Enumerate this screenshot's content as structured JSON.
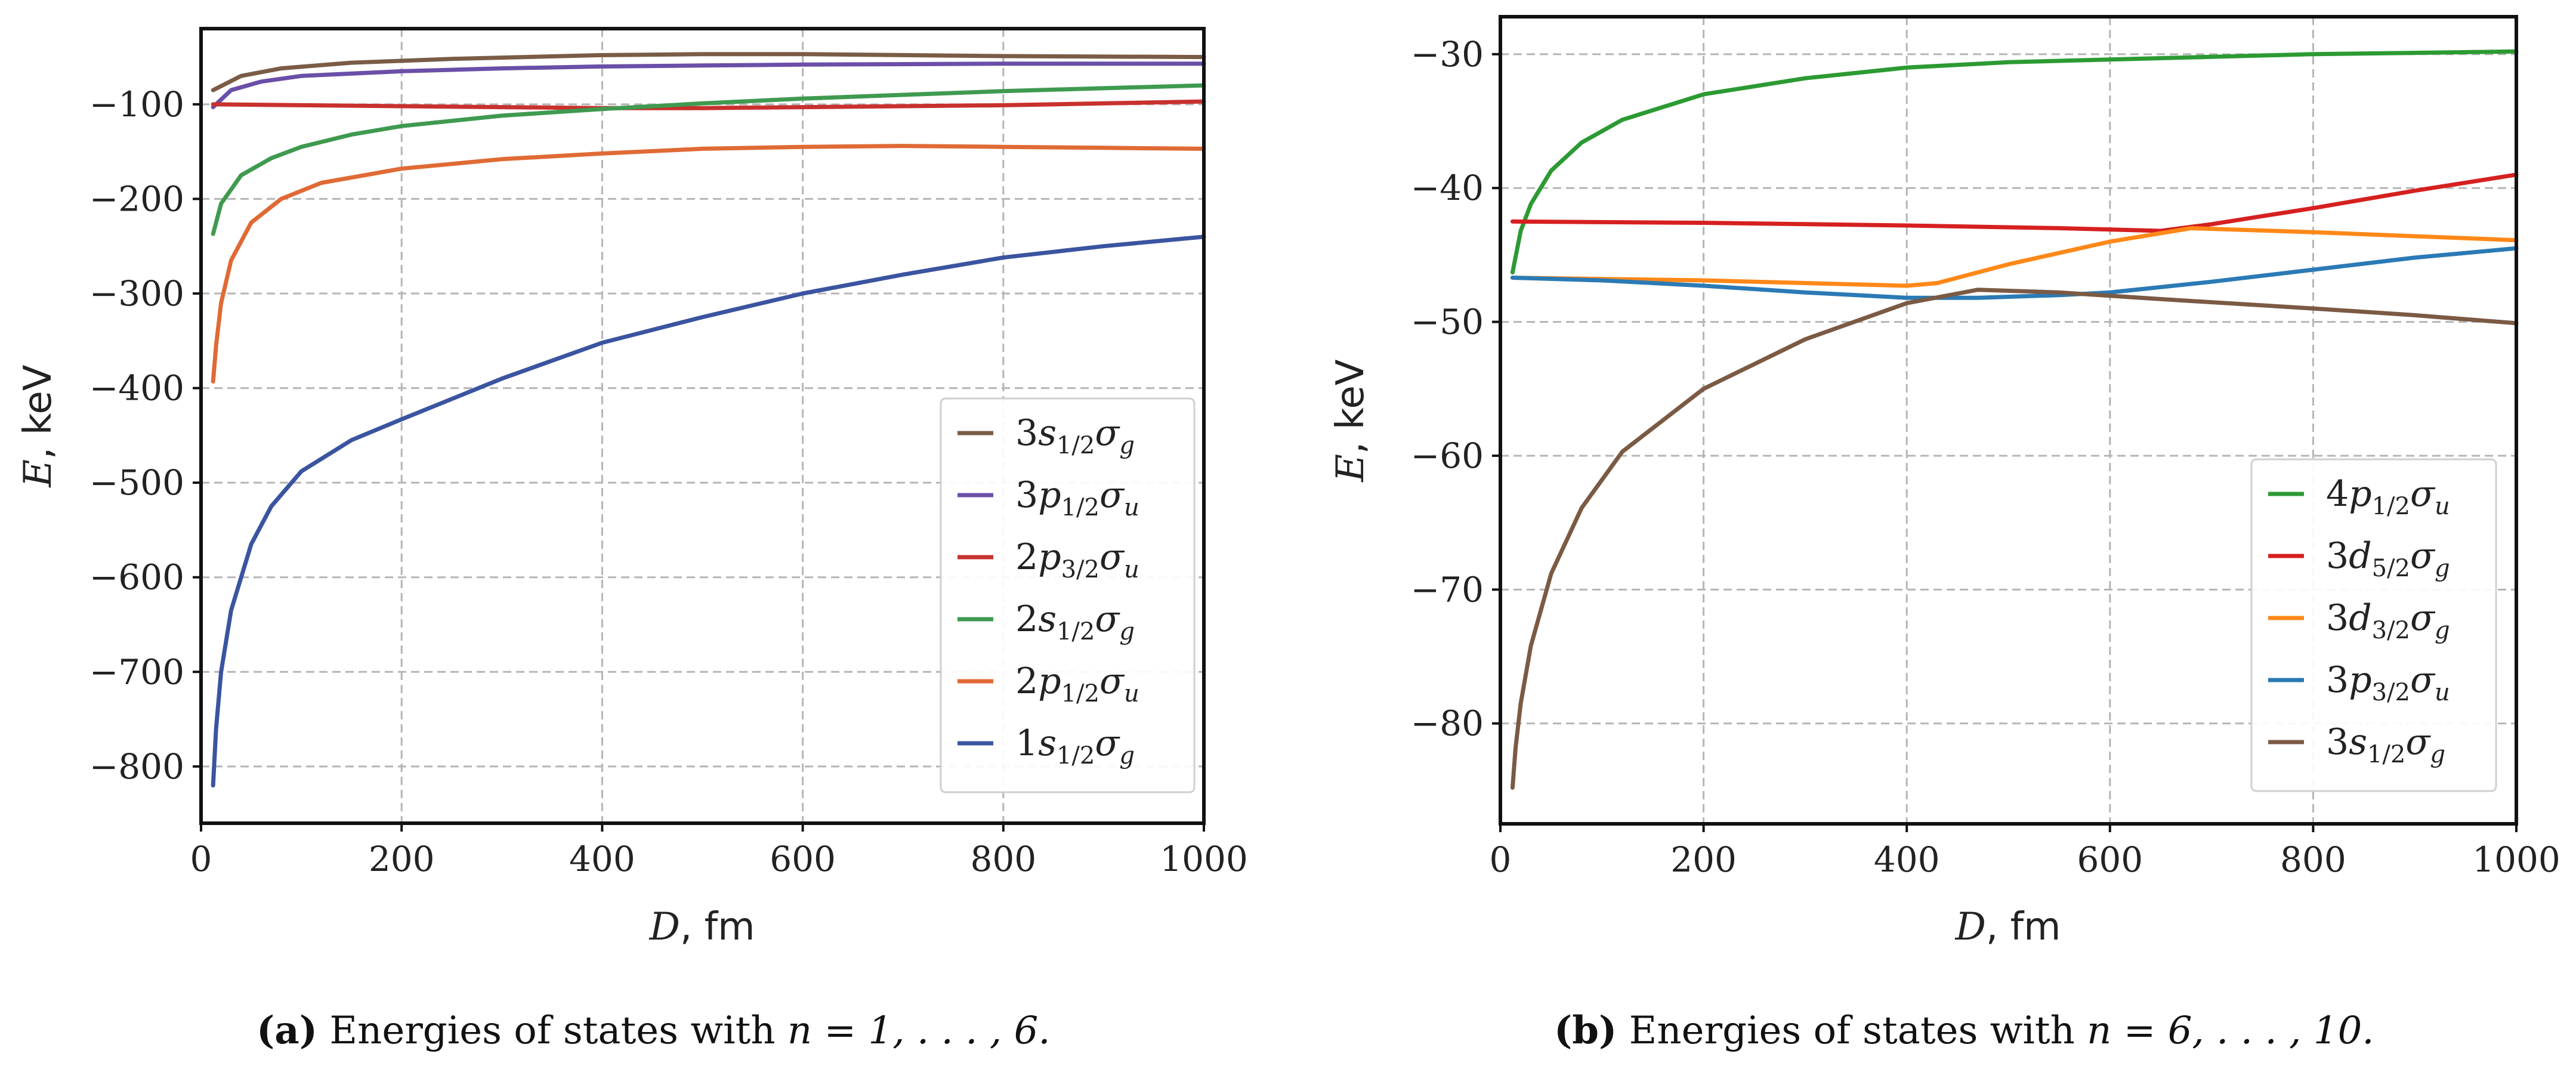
{
  "chart_data": [
    {
      "type": "line",
      "panel_label": "(a)",
      "caption_text": "Energies of states with",
      "caption_math": "n = 1, . . . , 6.",
      "xlabel_var": "D",
      "xlabel_unit": ", fm",
      "ylabel_var": "E",
      "ylabel_unit": ", keV",
      "xlim": [
        0,
        1000
      ],
      "ylim": [
        -860,
        -20
      ],
      "xticks": [
        0,
        200,
        400,
        600,
        800,
        1000
      ],
      "yticks": [
        -800,
        -700,
        -600,
        -500,
        -400,
        -300,
        -200,
        -100
      ],
      "grid": true,
      "legend_position": "lower-right",
      "series": [
        {
          "name": "3s1/2σg",
          "legend": {
            "pre": "3s",
            "sub": "1/2",
            "mid": "σ",
            "sub2": "g"
          },
          "color": "#7a5c46",
          "x": [
            12,
            40,
            80,
            150,
            250,
            400,
            500,
            600,
            700,
            800,
            1000
          ],
          "y": [
            -85,
            -70,
            -62,
            -56,
            -52,
            -48,
            -47,
            -47,
            -48,
            -49,
            -50
          ]
        },
        {
          "name": "3p1/2σu",
          "legend": {
            "pre": "3p",
            "sub": "1/2",
            "mid": "σ",
            "sub2": "u"
          },
          "color": "#6a4fa8",
          "x": [
            12,
            30,
            60,
            100,
            200,
            300,
            400,
            500,
            600,
            800,
            1000
          ],
          "y": [
            -103,
            -85,
            -76,
            -70,
            -65,
            -62,
            -60,
            -59,
            -58,
            -57,
            -57
          ]
        },
        {
          "name": "2p3/2σu",
          "legend": {
            "pre": "2p",
            "sub": "3/2",
            "mid": "σ",
            "sub2": "u"
          },
          "color": "#c8312e",
          "x": [
            12,
            100,
            200,
            300,
            400,
            500,
            600,
            700,
            800,
            900,
            1000
          ],
          "y": [
            -100,
            -101,
            -102,
            -103,
            -104,
            -104,
            -103,
            -102,
            -101,
            -99,
            -97
          ]
        },
        {
          "name": "2s1/2σg",
          "legend": {
            "pre": "2s",
            "sub": "1/2",
            "mid": "σ",
            "sub2": "g"
          },
          "color": "#3f9a50",
          "x": [
            12,
            20,
            40,
            70,
            100,
            150,
            200,
            300,
            400,
            500,
            600,
            700,
            800,
            900,
            1000
          ],
          "y": [
            -237,
            -205,
            -175,
            -157,
            -145,
            -132,
            -123,
            -112,
            -105,
            -99,
            -94,
            -90,
            -86,
            -83,
            -80
          ]
        },
        {
          "name": "2p1/2σu",
          "legend": {
            "pre": "2p",
            "sub": "1/2",
            "mid": "σ",
            "sub2": "u"
          },
          "color": "#e06a35",
          "x": [
            12,
            15,
            20,
            30,
            50,
            80,
            120,
            200,
            300,
            400,
            500,
            600,
            700,
            800,
            900,
            1000
          ],
          "y": [
            -393,
            -355,
            -310,
            -265,
            -225,
            -200,
            -183,
            -168,
            -158,
            -152,
            -147,
            -145,
            -144,
            -145,
            -146,
            -147
          ]
        },
        {
          "name": "1s1/2σg",
          "legend": {
            "pre": "1s",
            "sub": "1/2",
            "mid": "σ",
            "sub2": "g"
          },
          "color": "#3a54a0",
          "x": [
            12,
            15,
            20,
            30,
            50,
            70,
            100,
            150,
            200,
            300,
            400,
            500,
            600,
            700,
            800,
            900,
            1000
          ],
          "y": [
            -820,
            -760,
            -700,
            -635,
            -565,
            -525,
            -488,
            -455,
            -433,
            -390,
            -352,
            -325,
            -300,
            -280,
            -262,
            -250,
            -240
          ]
        }
      ]
    },
    {
      "type": "line",
      "panel_label": "(b)",
      "caption_text": "Energies of states with",
      "caption_math": "n = 6, . . . , 10.",
      "xlabel_var": "D",
      "xlabel_unit": ", fm",
      "ylabel_var": "E",
      "ylabel_unit": ", keV",
      "xlim": [
        0,
        1000
      ],
      "ylim": [
        -87.5,
        -27.2
      ],
      "xticks": [
        0,
        200,
        400,
        600,
        800,
        1000
      ],
      "yticks": [
        -80,
        -70,
        -60,
        -50,
        -40,
        -30
      ],
      "grid": true,
      "legend_position": "lower-right",
      "series": [
        {
          "name": "4p1/2σu",
          "legend": {
            "pre": "4p",
            "sub": "1/2",
            "mid": "σ",
            "sub2": "u"
          },
          "color": "#2c9a33",
          "x": [
            12,
            20,
            30,
            50,
            80,
            120,
            200,
            300,
            400,
            500,
            600,
            700,
            800,
            900,
            1000
          ],
          "y": [
            -46.3,
            -43.2,
            -41.2,
            -38.7,
            -36.6,
            -34.9,
            -33.0,
            -31.8,
            -31.0,
            -30.6,
            -30.4,
            -30.2,
            -30.0,
            -29.9,
            -29.8
          ]
        },
        {
          "name": "3d5/2σg",
          "legend": {
            "pre": "3d",
            "sub": "5/2",
            "mid": "σ",
            "sub2": "g"
          },
          "color": "#d62020",
          "x": [
            12,
            200,
            400,
            550,
            650,
            700,
            800,
            900,
            1000
          ],
          "y": [
            -42.5,
            -42.6,
            -42.8,
            -43.0,
            -43.2,
            -42.7,
            -41.5,
            -40.2,
            -39.0
          ]
        },
        {
          "name": "3d3/2σg",
          "legend": {
            "pre": "3d",
            "sub": "3/2",
            "mid": "σ",
            "sub2": "g"
          },
          "color": "#ff8818",
          "x": [
            12,
            200,
            300,
            400,
            430,
            500,
            600,
            680,
            800,
            900,
            1000
          ],
          "y": [
            -46.7,
            -46.9,
            -47.1,
            -47.3,
            -47.1,
            -45.7,
            -44.0,
            -43.0,
            -43.3,
            -43.6,
            -43.9
          ]
        },
        {
          "name": "3p3/2σu",
          "legend": {
            "pre": "3p",
            "sub": "3/2",
            "mid": "σ",
            "sub2": "u"
          },
          "color": "#2a7ab5",
          "x": [
            12,
            100,
            200,
            300,
            400,
            470,
            550,
            600,
            700,
            800,
            900,
            1000
          ],
          "y": [
            -46.7,
            -46.9,
            -47.3,
            -47.8,
            -48.2,
            -48.2,
            -48.0,
            -47.8,
            -47.0,
            -46.1,
            -45.2,
            -44.5
          ]
        },
        {
          "name": "3s1/2σg",
          "legend": {
            "pre": "3s",
            "sub": "1/2",
            "mid": "σ",
            "sub2": "g"
          },
          "color": "#7b5a44",
          "x": [
            12,
            15,
            20,
            30,
            50,
            80,
            120,
            200,
            300,
            400,
            470,
            550,
            650,
            800,
            900,
            1000
          ],
          "y": [
            -84.8,
            -81.8,
            -78.5,
            -74.2,
            -68.8,
            -63.9,
            -59.7,
            -55.0,
            -51.3,
            -48.6,
            -47.6,
            -47.8,
            -48.3,
            -49.0,
            -49.5,
            -50.1
          ]
        }
      ]
    }
  ]
}
